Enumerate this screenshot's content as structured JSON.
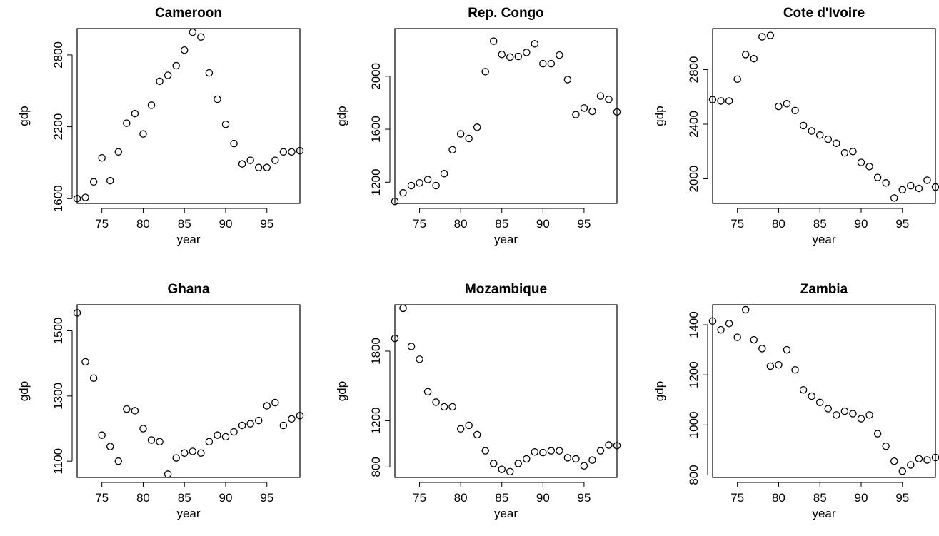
{
  "chart_data": [
    {
      "type": "scatter",
      "title": "Cameroon",
      "xlabel": "year",
      "ylabel": "gdp",
      "xlim": [
        72,
        99
      ],
      "ylim": [
        1560,
        3020
      ],
      "xticks": [
        "75",
        "80",
        "85",
        "90",
        "95"
      ],
      "yticks": [
        "1600",
        "2200",
        "2800"
      ],
      "ytick_values": [
        1600,
        2200,
        2800
      ],
      "x": [
        72,
        73,
        74,
        75,
        76,
        77,
        78,
        79,
        80,
        81,
        82,
        83,
        84,
        85,
        86,
        87,
        88,
        89,
        90,
        91,
        92,
        93,
        94,
        95,
        96,
        97,
        98,
        99
      ],
      "y": [
        1600,
        1610,
        1740,
        1940,
        1750,
        1990,
        2230,
        2310,
        2140,
        2380,
        2580,
        2630,
        2710,
        2840,
        2990,
        2950,
        2650,
        2430,
        2220,
        2060,
        1890,
        1920,
        1860,
        1860,
        1920,
        1990,
        1990,
        2000
      ]
    },
    {
      "type": "scatter",
      "title": "Rep. Congo",
      "xlabel": "year",
      "ylabel": "gdp",
      "xlim": [
        72,
        99
      ],
      "ylim": [
        1040,
        2360
      ],
      "xticks": [
        "75",
        "80",
        "85",
        "90",
        "95"
      ],
      "yticks": [
        "1200",
        "1600",
        "2000"
      ],
      "ytick_values": [
        1200,
        1600,
        2000
      ],
      "x": [
        72,
        73,
        74,
        75,
        76,
        77,
        78,
        79,
        80,
        81,
        82,
        83,
        84,
        85,
        86,
        87,
        88,
        89,
        90,
        91,
        92,
        93,
        94,
        95,
        96,
        97,
        98,
        99
      ],
      "y": [
        1055,
        1120,
        1175,
        1195,
        1220,
        1175,
        1265,
        1445,
        1565,
        1530,
        1615,
        2035,
        2265,
        2165,
        2145,
        2150,
        2180,
        2245,
        2095,
        2095,
        2160,
        1975,
        1710,
        1760,
        1735,
        1850,
        1825,
        1730
      ]
    },
    {
      "type": "scatter",
      "title": "Cote d'Ivoire",
      "xlabel": "year",
      "ylabel": "gdp",
      "xlim": [
        72,
        99
      ],
      "ylim": [
        1820,
        3100
      ],
      "xticks": [
        "75",
        "80",
        "85",
        "90",
        "95"
      ],
      "yticks": [
        "2000",
        "2400",
        "2800"
      ],
      "ytick_values": [
        2000,
        2400,
        2800
      ],
      "x": [
        72,
        73,
        74,
        75,
        76,
        77,
        78,
        79,
        80,
        81,
        82,
        83,
        84,
        85,
        86,
        87,
        88,
        89,
        90,
        91,
        92,
        93,
        94,
        95,
        96,
        97,
        98,
        99
      ],
      "y": [
        2580,
        2570,
        2570,
        2730,
        2910,
        2880,
        3040,
        3050,
        2530,
        2550,
        2500,
        2390,
        2350,
        2320,
        2290,
        2260,
        2190,
        2200,
        2120,
        2090,
        2010,
        1970,
        1860,
        1920,
        1950,
        1930,
        1990,
        1940
      ]
    },
    {
      "type": "scatter",
      "title": "Ghana",
      "xlabel": "year",
      "ylabel": "gdp",
      "xlim": [
        72,
        99
      ],
      "ylim": [
        1050,
        1580
      ],
      "xticks": [
        "75",
        "80",
        "85",
        "90",
        "95"
      ],
      "yticks": [
        "1100",
        "1300",
        "1500"
      ],
      "ytick_values": [
        1100,
        1300,
        1500
      ],
      "x": [
        72,
        73,
        74,
        75,
        76,
        77,
        78,
        79,
        80,
        81,
        82,
        83,
        84,
        85,
        86,
        87,
        88,
        89,
        90,
        91,
        92,
        93,
        94,
        95,
        96,
        97,
        98,
        99
      ],
      "y": [
        1555,
        1405,
        1355,
        1180,
        1145,
        1100,
        1260,
        1255,
        1200,
        1165,
        1160,
        1060,
        1110,
        1125,
        1130,
        1125,
        1160,
        1180,
        1175,
        1190,
        1210,
        1215,
        1225,
        1270,
        1280,
        1210,
        1230,
        1240
      ]
    },
    {
      "type": "scatter",
      "title": "Mozambique",
      "xlabel": "year",
      "ylabel": "gdp",
      "xlim": [
        72,
        99
      ],
      "ylim": [
        710,
        2200
      ],
      "xticks": [
        "75",
        "80",
        "85",
        "90",
        "95"
      ],
      "yticks": [
        "800",
        "1200",
        "1800"
      ],
      "ytick_values": [
        800,
        1200,
        1800
      ],
      "x": [
        72,
        73,
        74,
        75,
        76,
        77,
        78,
        79,
        80,
        81,
        82,
        83,
        84,
        85,
        86,
        87,
        88,
        89,
        90,
        91,
        92,
        93,
        94,
        95,
        96,
        97,
        98,
        99
      ],
      "y": [
        1910,
        2170,
        1840,
        1730,
        1450,
        1360,
        1320,
        1320,
        1130,
        1160,
        1080,
        940,
        830,
        780,
        760,
        830,
        870,
        930,
        925,
        940,
        940,
        880,
        870,
        810,
        860,
        940,
        990,
        985
      ]
    },
    {
      "type": "scatter",
      "title": "Zambia",
      "xlabel": "year",
      "ylabel": "gdp",
      "xlim": [
        72,
        99
      ],
      "ylim": [
        790,
        1480
      ],
      "xticks": [
        "75",
        "80",
        "85",
        "90",
        "95"
      ],
      "yticks": [
        "800",
        "1000",
        "1200",
        "1400"
      ],
      "ytick_values": [
        800,
        1000,
        1200,
        1400
      ],
      "x": [
        72,
        73,
        74,
        75,
        76,
        77,
        78,
        79,
        80,
        81,
        82,
        83,
        84,
        85,
        86,
        87,
        88,
        89,
        90,
        91,
        92,
        93,
        94,
        95,
        96,
        97,
        98,
        99
      ],
      "y": [
        1415,
        1380,
        1405,
        1350,
        1460,
        1340,
        1305,
        1235,
        1240,
        1300,
        1220,
        1140,
        1115,
        1090,
        1065,
        1040,
        1055,
        1045,
        1025,
        1040,
        965,
        915,
        855,
        815,
        840,
        865,
        860,
        870
      ]
    }
  ]
}
